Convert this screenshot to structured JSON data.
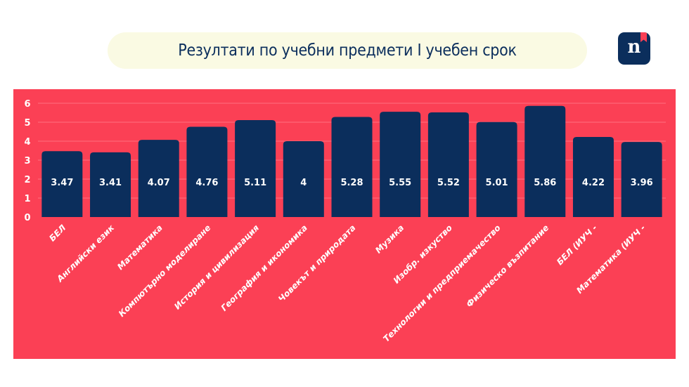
{
  "header": {
    "title": "Резултати по учебни предмети I учебен срок",
    "logo_text": "n"
  },
  "colors": {
    "background": "#fb4055",
    "bar": "#0b2e5c",
    "text": "#ffffff",
    "title_bg": "#fafae3"
  },
  "chart_data": {
    "type": "bar",
    "title": "Резултати по учебни предмети I учебен срок",
    "categories": [
      "БЕЛ",
      "Английски език",
      "Математика",
      "Компютърно моделиране",
      "История и цивилизация",
      "География и икономика",
      "Човекът и природата",
      "Музика",
      "Изобр. изкуство",
      "Технологии и предприемачество",
      "Физическо възпитание",
      "БЕЛ (ИУЧ -",
      "Математика (ИУЧ -"
    ],
    "values": [
      3.47,
      3.41,
      4.07,
      4.76,
      5.11,
      4,
      5.28,
      5.55,
      5.52,
      5.01,
      5.86,
      4.22,
      3.96
    ],
    "value_labels": [
      "3.47",
      "3.41",
      "4.07",
      "4.76",
      "5.11",
      "4",
      "5.28",
      "5.55",
      "5.52",
      "5.01",
      "5.86",
      "4.22",
      "3.96"
    ],
    "ylim": [
      0,
      6
    ],
    "yticks": [
      "0",
      "1",
      "2",
      "3",
      "4",
      "5",
      "6"
    ],
    "grid": true,
    "xlabel": "",
    "ylabel": ""
  }
}
